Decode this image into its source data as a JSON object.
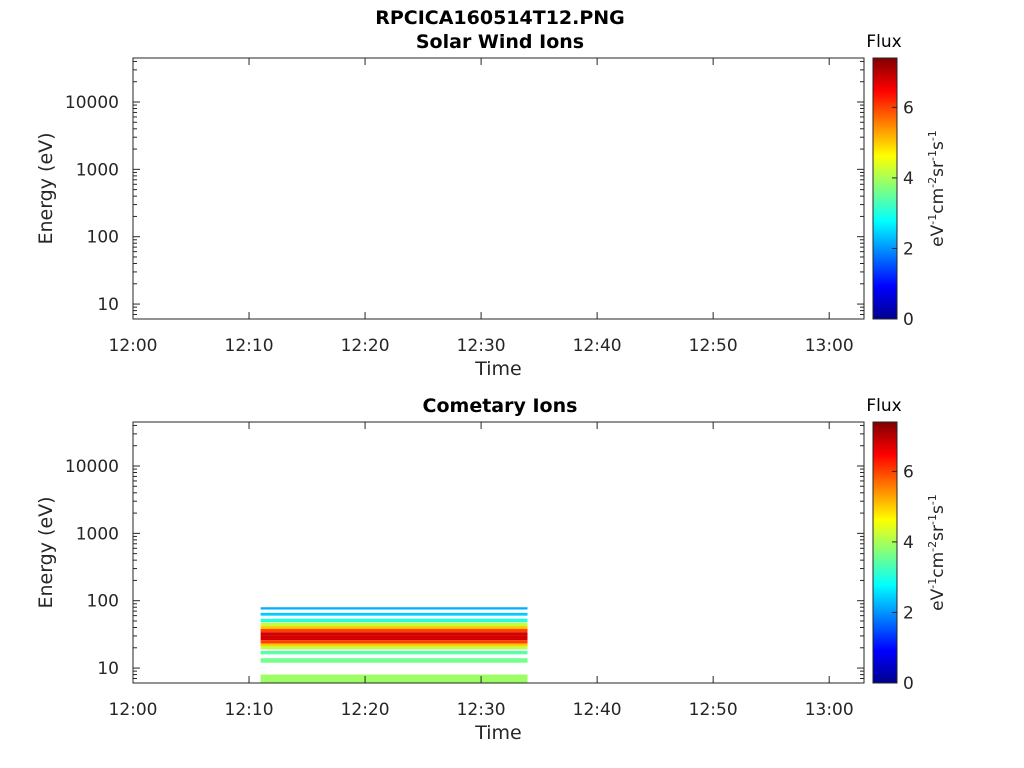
{
  "page": {
    "title": "RPCICA160514T12.PNG"
  },
  "chart_data": [
    {
      "type": "heatmap",
      "title": "Solar Wind Ions",
      "xlabel": "Time",
      "ylabel": "Energy (eV)",
      "xticks": [
        "12:00",
        "12:10",
        "12:20",
        "12:30",
        "12:40",
        "12:50",
        "13:00"
      ],
      "xlim": [
        "12:00",
        "13:03"
      ],
      "yscale": "log",
      "yticks": [
        10,
        100,
        1000,
        10000
      ],
      "ytick_labels": [
        "10",
        "100",
        "1000",
        "10000"
      ],
      "ylim": [
        6,
        45000
      ],
      "colorbar": {
        "title": "Flux",
        "label": "eV-1cm-2sr-1s-1",
        "label_parts": [
          "eV",
          "-1",
          "cm",
          "-2",
          "sr",
          "-1",
          "s",
          "-1"
        ],
        "range": [
          0,
          7.4
        ],
        "ticks": [
          "0",
          "2",
          "4",
          "6"
        ],
        "colormap": "jet"
      },
      "data": []
    },
    {
      "type": "heatmap",
      "title": "Cometary Ions",
      "xlabel": "Time",
      "ylabel": "Energy (eV)",
      "xticks": [
        "12:00",
        "12:10",
        "12:20",
        "12:30",
        "12:40",
        "12:50",
        "13:00"
      ],
      "xlim": [
        "12:00",
        "13:03"
      ],
      "yscale": "log",
      "yticks": [
        10,
        100,
        1000,
        10000
      ],
      "ytick_labels": [
        "10",
        "100",
        "1000",
        "10000"
      ],
      "ylim": [
        6,
        45000
      ],
      "colorbar": {
        "title": "Flux",
        "label": "eV-1cm-2sr-1s-1",
        "label_parts": [
          "eV",
          "-1",
          "cm",
          "-2",
          "sr",
          "-1",
          "s",
          "-1"
        ],
        "range": [
          0,
          7.4
        ],
        "ticks": [
          "0",
          "2",
          "4",
          "6"
        ],
        "colormap": "jet"
      },
      "data": [
        {
          "t_start": "12:11",
          "t_end": "12:34",
          "e_low": 74,
          "e_high": 80,
          "flux": 2.2
        },
        {
          "t_start": "12:11",
          "t_end": "12:34",
          "e_low": 60,
          "e_high": 66,
          "flux": 2.4
        },
        {
          "t_start": "12:11",
          "t_end": "12:34",
          "e_low": 48,
          "e_high": 54,
          "flux": 3.0
        },
        {
          "t_start": "12:11",
          "t_end": "12:34",
          "e_low": 42,
          "e_high": 47,
          "flux": 4.2
        },
        {
          "t_start": "12:11",
          "t_end": "12:34",
          "e_low": 38,
          "e_high": 42,
          "flux": 5.0
        },
        {
          "t_start": "12:11",
          "t_end": "12:34",
          "e_low": 34,
          "e_high": 38,
          "flux": 6.0
        },
        {
          "t_start": "12:11",
          "t_end": "12:34",
          "e_low": 30,
          "e_high": 34,
          "flux": 6.8
        },
        {
          "t_start": "12:11",
          "t_end": "12:34",
          "e_low": 26,
          "e_high": 30,
          "flux": 6.8
        },
        {
          "t_start": "12:11",
          "t_end": "12:34",
          "e_low": 23,
          "e_high": 26,
          "flux": 6.0
        },
        {
          "t_start": "12:11",
          "t_end": "12:34",
          "e_low": 21,
          "e_high": 23,
          "flux": 5.0
        },
        {
          "t_start": "12:11",
          "t_end": "12:34",
          "e_low": 19,
          "e_high": 21,
          "flux": 4.2
        },
        {
          "t_start": "12:11",
          "t_end": "12:34",
          "e_low": 16,
          "e_high": 18,
          "flux": 3.4
        },
        {
          "t_start": "12:11",
          "t_end": "12:34",
          "e_low": 12,
          "e_high": 14,
          "flux": 3.6
        },
        {
          "t_start": "12:11",
          "t_end": "12:34",
          "e_low": 6,
          "e_high": 8,
          "flux": 3.9
        }
      ]
    }
  ]
}
